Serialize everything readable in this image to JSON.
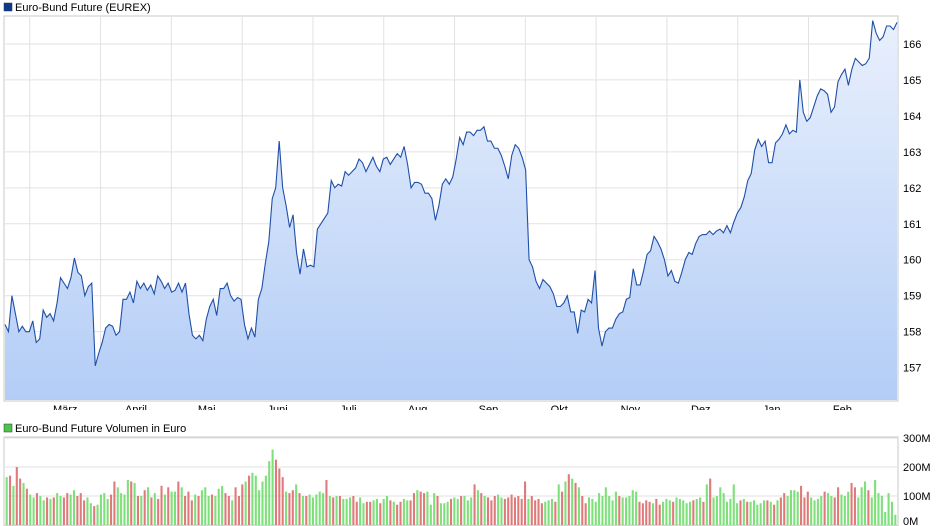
{
  "chart_data": [
    {
      "type": "area",
      "legend": "Euro-Bund Future (EUREX)",
      "series_color": "#1f4fa8",
      "fill_top": "#e9f0fd",
      "fill_bottom": "#b3cdf6",
      "legend_swatch": "#0a3a8f",
      "grid": true,
      "x_labels": [
        "März",
        "April",
        "Mai",
        "Juni",
        "Juli",
        "Aug.",
        "Sep.",
        "Okt.",
        "Nov.",
        "Dez.",
        "Jan.",
        "Feb."
      ],
      "y_ticks": [
        157,
        158,
        159,
        160,
        161,
        162,
        163,
        164,
        165,
        166
      ],
      "ylim": [
        156.1,
        166.75
      ],
      "values": [
        158.2,
        158.0,
        159.0,
        158.5,
        158.0,
        158.15,
        158.0,
        158.0,
        158.3,
        157.7,
        157.8,
        158.6,
        158.4,
        158.5,
        158.3,
        158.8,
        159.5,
        159.35,
        159.2,
        159.5,
        160.05,
        159.65,
        159.55,
        159.0,
        159.25,
        159.35,
        157.05,
        157.4,
        157.7,
        158.1,
        158.2,
        158.15,
        157.9,
        158.0,
        158.9,
        158.9,
        159.1,
        158.8,
        159.4,
        159.2,
        159.35,
        159.15,
        159.3,
        159.05,
        159.55,
        159.4,
        159.2,
        159.35,
        159.1,
        159.15,
        159.35,
        159.1,
        159.35,
        158.5,
        157.9,
        157.8,
        157.9,
        157.75,
        158.35,
        158.7,
        158.9,
        158.45,
        159.2,
        159.2,
        159.35,
        159.0,
        158.85,
        158.95,
        158.9,
        158.2,
        157.8,
        158.1,
        157.85,
        158.9,
        159.2,
        159.9,
        160.5,
        161.7,
        162.0,
        163.3,
        162.0,
        161.5,
        160.9,
        161.25,
        160.2,
        159.6,
        160.3,
        159.8,
        159.85,
        159.8,
        160.85,
        161.0,
        161.15,
        161.3,
        162.2,
        162.0,
        162.1,
        162.05,
        162.45,
        162.35,
        162.45,
        162.55,
        162.8,
        162.7,
        162.45,
        162.65,
        162.85,
        162.6,
        162.45,
        162.8,
        162.85,
        162.65,
        162.8,
        162.95,
        162.85,
        163.15,
        162.65,
        162.0,
        162.15,
        162.15,
        162.1,
        161.85,
        161.85,
        161.7,
        161.1,
        161.5,
        162.1,
        162.25,
        162.1,
        162.3,
        162.8,
        163.4,
        163.2,
        163.55,
        163.55,
        163.45,
        163.6,
        163.6,
        163.7,
        163.3,
        163.3,
        163.1,
        163.1,
        162.9,
        162.6,
        162.25,
        162.9,
        163.2,
        163.1,
        162.85,
        162.5,
        160.0,
        159.8,
        159.4,
        159.2,
        159.45,
        159.35,
        159.25,
        159.05,
        158.7,
        158.7,
        158.8,
        159.0,
        158.55,
        158.55,
        157.95,
        158.6,
        158.55,
        158.9,
        158.8,
        159.7,
        158.1,
        157.6,
        158.0,
        158.1,
        158.1,
        158.35,
        158.5,
        158.55,
        158.9,
        158.95,
        159.75,
        159.3,
        159.3,
        159.7,
        160.15,
        160.25,
        160.65,
        160.5,
        160.3,
        160.0,
        159.55,
        159.7,
        159.4,
        159.35,
        159.65,
        160.0,
        160.2,
        160.15,
        160.45,
        160.65,
        160.7,
        160.7,
        160.8,
        160.7,
        160.8,
        160.85,
        160.75,
        160.95,
        160.75,
        161.05,
        161.3,
        161.45,
        161.75,
        162.2,
        162.4,
        163.05,
        163.35,
        163.15,
        163.3,
        162.7,
        162.7,
        163.25,
        163.35,
        163.5,
        163.75,
        163.5,
        163.6,
        163.55,
        165.0,
        164.1,
        163.85,
        163.95,
        164.25,
        164.55,
        164.75,
        164.7,
        164.6,
        164.1,
        164.25,
        164.95,
        165.15,
        165.3,
        164.85,
        165.3,
        165.6,
        165.5,
        165.4,
        165.45,
        165.6,
        166.65,
        166.3,
        166.1,
        166.2,
        166.5,
        166.5,
        166.4,
        166.6
      ]
    },
    {
      "type": "bar",
      "legend": "Euro-Bund Future Volumen in Euro",
      "legend_swatch": "#4cc44c",
      "up_color": "#7ee07a",
      "down_color": "#e07a7a",
      "grid": true,
      "y_tick_labels": [
        "0M",
        "100M",
        "200M",
        "300M"
      ],
      "y_ticks": [
        0,
        100,
        200,
        300
      ],
      "ylim": [
        0,
        300
      ],
      "values_millions": [
        165,
        170,
        135,
        200,
        160,
        145,
        125,
        105,
        95,
        110,
        100,
        85,
        95,
        90,
        95,
        110,
        100,
        95,
        110,
        105,
        120,
        100,
        110,
        85,
        95,
        75,
        65,
        70,
        105,
        110,
        90,
        105,
        150,
        130,
        110,
        105,
        155,
        150,
        145,
        100,
        100,
        120,
        130,
        95,
        110,
        90,
        135,
        105,
        130,
        115,
        115,
        150,
        130,
        100,
        115,
        85,
        105,
        100,
        120,
        130,
        100,
        105,
        100,
        125,
        135,
        110,
        100,
        85,
        130,
        100,
        140,
        150,
        170,
        180,
        170,
        120,
        150,
        170,
        220,
        260,
        225,
        195,
        165,
        115,
        110,
        120,
        140,
        110,
        100,
        100,
        105,
        95,
        105,
        115,
        110,
        155,
        100,
        95,
        100,
        100,
        90,
        90,
        95,
        100,
        80,
        95,
        75,
        80,
        80,
        85,
        90,
        75,
        90,
        100,
        85,
        80,
        70,
        80,
        90,
        85,
        85,
        110,
        120,
        115,
        110,
        115,
        70,
        110,
        100,
        75,
        75,
        80,
        90,
        95,
        90,
        100,
        100,
        85,
        95,
        140,
        120,
        110,
        100,
        95,
        85,
        100,
        105,
        95,
        90,
        95,
        105,
        95,
        100,
        90,
        150,
        90,
        100,
        85,
        90,
        75,
        80,
        85,
        90,
        80,
        140,
        115,
        150,
        175,
        160,
        145,
        130,
        100,
        75,
        95,
        90,
        80,
        110,
        100,
        130,
        100,
        85,
        115,
        100,
        95,
        95,
        100,
        120,
        115,
        80,
        75,
        85,
        80,
        75,
        90,
        70,
        80,
        90,
        85,
        80,
        95,
        90,
        85,
        75,
        80,
        85,
        90,
        95,
        80,
        140,
        160,
        95,
        100,
        130,
        110,
        80,
        90,
        140,
        75,
        85,
        90,
        80,
        80,
        85,
        70,
        75,
        85,
        85,
        80,
        70,
        85,
        95,
        110,
        100,
        120,
        120,
        115,
        135,
        95,
        115,
        95,
        85,
        90,
        100,
        115,
        110,
        100,
        95,
        130,
        105,
        100,
        115,
        145,
        130,
        95,
        130,
        150,
        120,
        95,
        155,
        110,
        100,
        45,
        110,
        80,
        35
      ]
    }
  ]
}
